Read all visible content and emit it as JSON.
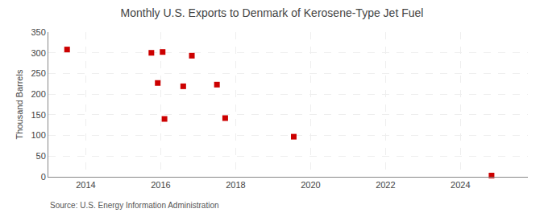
{
  "chart_data": {
    "type": "scatter",
    "title": "Monthly U.S. Exports to Denmark of Kerosene-Type Jet Fuel",
    "ylabel": "Thousand Barrels",
    "annotations": [
      "Source: U.S. Energy Information Administration"
    ],
    "x": [
      2013.5,
      2015.75,
      2015.92,
      2016.05,
      2016.1,
      2016.6,
      2016.83,
      2017.5,
      2017.72,
      2019.55,
      2024.83
    ],
    "values": [
      308,
      300,
      227,
      302,
      140,
      219,
      293,
      223,
      142,
      97,
      3
    ],
    "color": "#cc0000",
    "marker": "square",
    "xlim": [
      2013.0,
      2025.8
    ],
    "xticks": [
      2014,
      2016,
      2018,
      2020,
      2022,
      2024
    ],
    "ylim": [
      0,
      350
    ],
    "yticks": [
      0,
      50,
      100,
      150,
      200,
      250,
      300,
      350
    ],
    "grid": true
  }
}
